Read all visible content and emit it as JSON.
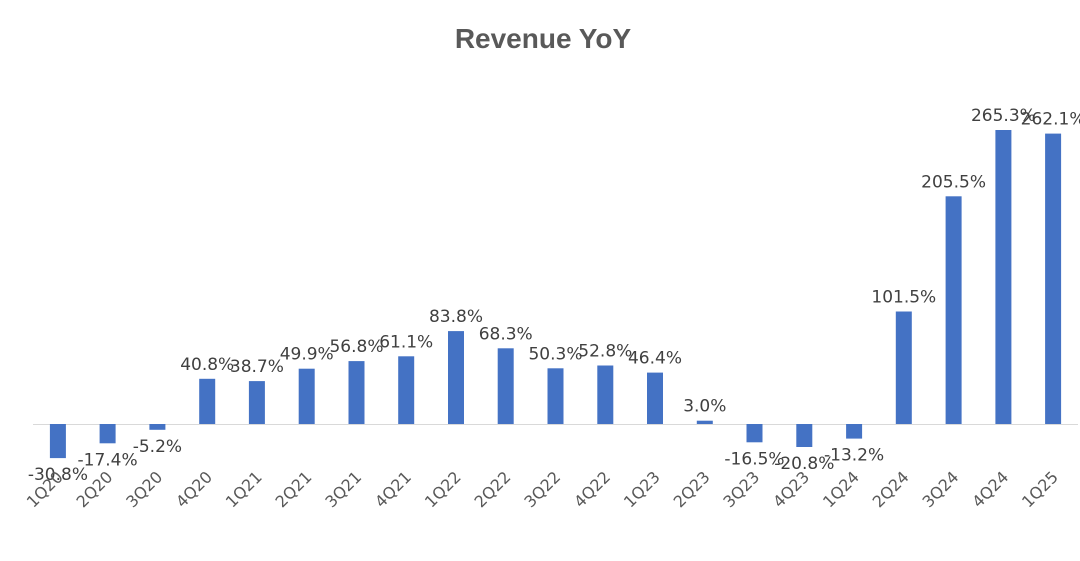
{
  "chart_data": {
    "type": "bar",
    "title": "Revenue YoY",
    "xlabel": "",
    "ylabel": "",
    "categories": [
      "1Q20",
      "2Q20",
      "3Q20",
      "4Q20",
      "1Q21",
      "2Q21",
      "3Q21",
      "4Q21",
      "1Q22",
      "2Q22",
      "3Q22",
      "4Q22",
      "1Q23",
      "2Q23",
      "3Q23",
      "4Q23",
      "1Q24",
      "2Q24",
      "3Q24",
      "4Q24",
      "1Q25"
    ],
    "values": [
      -30.8,
      -17.4,
      -5.2,
      40.8,
      38.7,
      49.9,
      56.8,
      61.1,
      83.8,
      68.3,
      50.3,
      52.8,
      46.4,
      3.0,
      -16.5,
      -20.8,
      -13.2,
      101.5,
      205.5,
      265.3,
      262.1
    ],
    "labels": [
      "-30.8%",
      "-17.4%",
      "-5.2%",
      "40.8%",
      "38.7%",
      "49.9%",
      "56.8%",
      "61.1%",
      "83.8%",
      "68.3%",
      "50.3%",
      "52.8%",
      "46.4%",
      "3.0%",
      "-16.5%",
      "-20.8%",
      "-13.2%",
      "101.5%",
      "205.5%",
      "265.3%",
      "262.1%"
    ],
    "value_format": "percent",
    "grid": false,
    "legend": "none",
    "bar_color": "#4472C4"
  }
}
